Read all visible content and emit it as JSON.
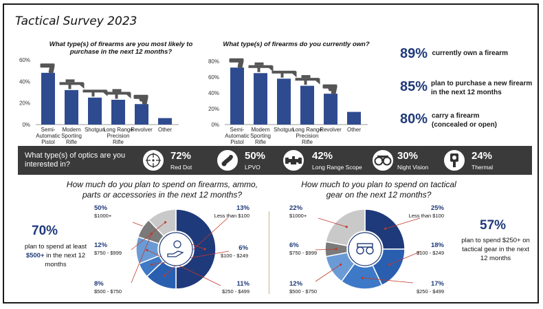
{
  "title": "Tactical Survey 2023",
  "colors": {
    "bar": "#2f4b8f",
    "dark": "#1f3a7a",
    "optics_bg": "#3a3a3a",
    "donut": [
      "#1f3a7a",
      "#2a5fb0",
      "#3d79c6",
      "#6a9bd6",
      "#7a7a7a",
      "#c9c9c9"
    ]
  },
  "chart_data": [
    {
      "type": "bar",
      "title": "What type(s) of firearms are you most likely to purchase in the next 12 months?",
      "categories": [
        "Semi-Automatic Pistol",
        "Modern Sporting Rifle",
        "Shotgun",
        "Long Range Precision Rifle",
        "Revolver",
        "Other"
      ],
      "values": [
        48,
        32,
        25,
        23,
        19,
        6
      ],
      "yticks": [
        "0%",
        "20%",
        "40%",
        "60%"
      ],
      "ylim": [
        0,
        60
      ],
      "grid": false,
      "icons": [
        "pistol-icon",
        "rifle-icon",
        "shotgun-icon",
        "precision-rifle-icon",
        "revolver-icon"
      ]
    },
    {
      "type": "bar",
      "title": "What type(s) of firearms do you currently own?",
      "categories": [
        "Semi-Automatic Pistol",
        "Modern Sporting Rifle",
        "Shotgun",
        "Long Range Precision Rifle",
        "Revolver",
        "Other"
      ],
      "values": [
        72,
        65,
        58,
        49,
        39,
        16
      ],
      "yticks": [
        "0%",
        "20%",
        "40%",
        "60%",
        "80%"
      ],
      "ylim": [
        0,
        80
      ],
      "grid": false,
      "icons": [
        "pistol-icon",
        "rifle-icon",
        "shotgun-icon",
        "precision-rifle-icon",
        "revolver-icon"
      ]
    },
    {
      "type": "pie",
      "title": "How much do you plan to spend on firearms, ammo, parts or accessories in the next 12 months?",
      "categories": [
        "$1000+",
        "Less than $100",
        "$100 - $249",
        "$250 - $499",
        "$500 - $750",
        "$750 - $999"
      ],
      "values": [
        50,
        13,
        6,
        11,
        8,
        12
      ],
      "labels": [
        "50%",
        "13%",
        "6%",
        "11%",
        "8%",
        "12%"
      ]
    },
    {
      "type": "pie",
      "title": "How much to you plan to spend on tactical gear on the next 12 months?",
      "categories": [
        "Less than $100",
        "$100 - $249",
        "$250 - $499",
        "$500 - $750",
        "$750 - $999",
        "$1000+"
      ],
      "values": [
        25,
        18,
        17,
        12,
        6,
        22
      ],
      "labels": [
        "25%",
        "18%",
        "17%",
        "12%",
        "6%",
        "22%"
      ]
    }
  ],
  "stats": [
    {
      "pct": "89%",
      "text": "currently own a firearm"
    },
    {
      "pct": "85%",
      "text": "plan to purchase a new firearm in the next 12 months"
    },
    {
      "pct": "80%",
      "text": "carry a firearm (concealed or open)"
    }
  ],
  "optics": {
    "question": "What type(s) of optics are you interested in?",
    "items": [
      {
        "pct": "72%",
        "label": "Red Dot",
        "icon": "red-dot-icon"
      },
      {
        "pct": "50%",
        "label": "LPVO",
        "icon": "lpvo-icon"
      },
      {
        "pct": "42%",
        "label": "Long Range Scope",
        "icon": "scope-icon"
      },
      {
        "pct": "30%",
        "label": "Night Vision",
        "icon": "night-vision-icon"
      },
      {
        "pct": "24%",
        "label": "Thermal",
        "icon": "thermal-icon"
      }
    ]
  },
  "spend_left": {
    "big": "70%",
    "text": "plan to spend at least",
    "bold": "$500+",
    "text2": "in the next 12 months"
  },
  "spend_right": {
    "big": "57%",
    "text": "plan to spend $250+ on tactical gear in the next 12 months"
  }
}
